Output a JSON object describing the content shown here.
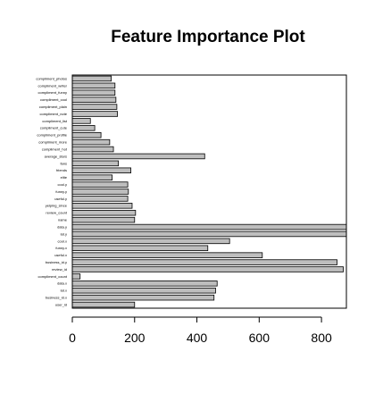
{
  "chart_data": {
    "type": "bar",
    "orientation": "horizontal",
    "title": "Feature Importance Plot",
    "xlabel": "",
    "ylabel": "",
    "xlim": [
      0,
      880
    ],
    "xticks": [
      0,
      200,
      400,
      600,
      800
    ],
    "grid": false,
    "legend": "none",
    "bar_color": "#bebebe",
    "border_color": "#000000",
    "categories": [
      "user_id",
      "business_id.x",
      "lat.x",
      "data.x",
      "compliment_count",
      "review_id",
      "business_id.y",
      "useful.x",
      "funny.x",
      "cool.x",
      "lat.y",
      "data.y",
      "name",
      "review_count",
      "yelping_since",
      "useful.y",
      "funny.y",
      "cool.y",
      "elite",
      "friends",
      "fans",
      "average_stars",
      "compliment_hot",
      "compliment_more",
      "compliment_profile",
      "compliment_cute",
      "compliment_list",
      "compliment_note",
      "compliment_plain",
      "compliment_cool",
      "compliment_funny",
      "compliment_writer",
      "compliment_photos"
    ],
    "values": [
      200,
      455,
      460,
      465,
      25,
      870,
      850,
      610,
      435,
      505,
      880,
      880,
      200,
      203,
      192,
      178,
      180,
      178,
      128,
      188,
      148,
      425,
      132,
      120,
      92,
      72,
      58,
      145,
      143,
      140,
      137,
      137,
      125
    ]
  }
}
